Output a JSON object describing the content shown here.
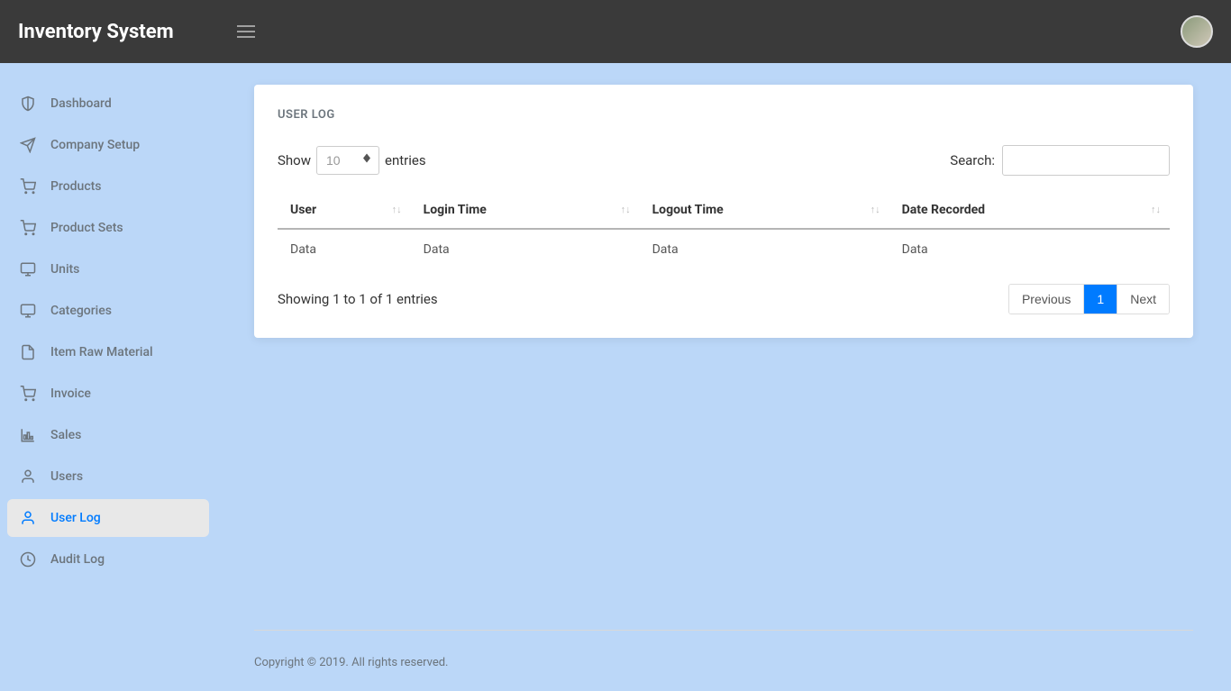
{
  "header": {
    "logo": "Inventory System"
  },
  "sidebar": {
    "items": [
      {
        "label": "Dashboard",
        "icon": "shield"
      },
      {
        "label": "Company Setup",
        "icon": "send"
      },
      {
        "label": "Products",
        "icon": "cart"
      },
      {
        "label": "Product Sets",
        "icon": "cart"
      },
      {
        "label": "Units",
        "icon": "monitor"
      },
      {
        "label": "Categories",
        "icon": "monitor"
      },
      {
        "label": "Item Raw Material",
        "icon": "file"
      },
      {
        "label": "Invoice",
        "icon": "cart"
      },
      {
        "label": "Sales",
        "icon": "chart"
      },
      {
        "label": "Users",
        "icon": "user"
      },
      {
        "label": "User Log",
        "icon": "user",
        "active": true
      },
      {
        "label": "Audit Log",
        "icon": "clock"
      }
    ]
  },
  "card": {
    "title": "USER LOG",
    "show_label": "Show",
    "entries_label": "entries",
    "entries_value": "10",
    "search_label": "Search:",
    "columns": [
      "User",
      "Login Time",
      "Logout Time",
      "Date Recorded"
    ],
    "rows": [
      [
        "Data",
        "Data",
        "Data",
        "Data"
      ]
    ],
    "info": "Showing 1 to 1 of 1 entries",
    "prev": "Previous",
    "next": "Next",
    "page": "1"
  },
  "footer": {
    "text": "Copyright © 2019. All rights reserved."
  },
  "colors": {
    "header_bg": "#3a3a3a",
    "body_bg": "#bbd7f8",
    "active_bg": "#e8e8e8",
    "active_fg": "#007bff",
    "muted": "#6c757d"
  }
}
